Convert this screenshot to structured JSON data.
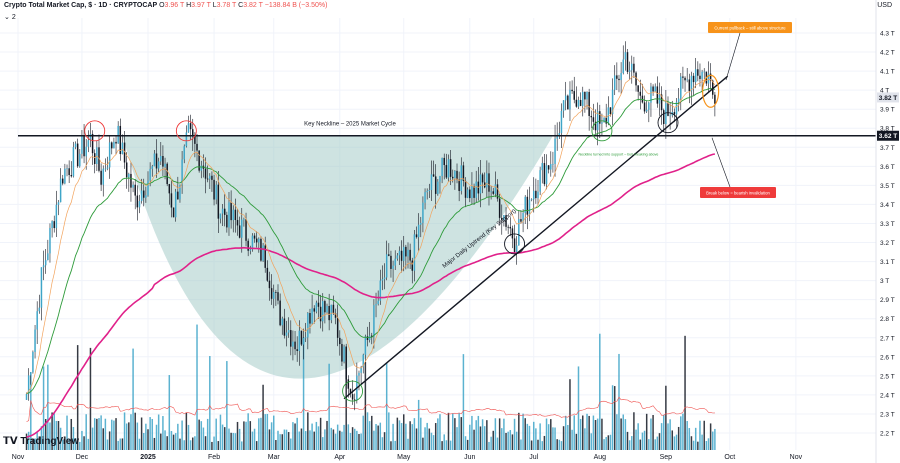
{
  "header": {
    "symbol": "Crypto Total Market Cap, $ · 1D · CRYPTOCAP",
    "o_label": "O",
    "o_value": "3.96 T",
    "h_label": "H",
    "h_value": "3.97 T",
    "l_label": "L",
    "l_value": "3.78 T",
    "c_label": "C",
    "c_value": "3.82 T",
    "change": "−138.84 B (−3.50%)",
    "indicator_count": "2"
  },
  "currency": "USD",
  "branding": "TradingView",
  "colors": {
    "up": "#26a69a",
    "down": "#131722",
    "candle_body": "#3ea5c8",
    "ema_fast": "#f2a35c",
    "ema_mid": "#2e9b3a",
    "ema_slow": "#e0218a",
    "neckline": "#131722",
    "cup_fill": "#a6ccc8",
    "callout_orange": "#f7931a",
    "callout_red": "#ef3b3b"
  },
  "chart_data": {
    "type": "candlestick",
    "title": "",
    "x_tick_labels": [
      "Nov",
      "Dec",
      "2025",
      "Feb",
      "Mar",
      "Apr",
      "May",
      "Jun",
      "Jul",
      "Aug",
      "Sep",
      "Oct",
      "Nov"
    ],
    "y_tick_labels": [
      "4.3 T",
      "4.2 T",
      "4.1 T",
      "4 T",
      "3.9 T",
      "3.8 T",
      "3.7 T",
      "3.6 T",
      "3.5 T",
      "3.4 T",
      "3.3 T",
      "3.2 T",
      "3.1 T",
      "3 T",
      "2.9 T",
      "2.8 T",
      "2.7 T",
      "2.6 T",
      "2.5 T",
      "2.4 T",
      "2.3 T",
      "2.2 T"
    ],
    "y_scale": "log",
    "ylim": [
      2.15,
      4.35
    ],
    "last_price_label": "3.82 T",
    "neckline_price_label": "3.62 T",
    "neckline_value": 3.62,
    "close_anchors": [
      {
        "date": "2024-11-05",
        "close": 2.35
      },
      {
        "date": "2024-11-12",
        "close": 2.85
      },
      {
        "date": "2024-11-22",
        "close": 3.4
      },
      {
        "date": "2024-12-05",
        "close": 3.6
      },
      {
        "date": "2024-12-10",
        "close": 3.38
      },
      {
        "date": "2024-12-17",
        "close": 3.65
      },
      {
        "date": "2024-12-26",
        "close": 3.25
      },
      {
        "date": "2025-01-07",
        "close": 3.5
      },
      {
        "date": "2025-01-13",
        "close": 3.2
      },
      {
        "date": "2025-01-20",
        "close": 3.62
      },
      {
        "date": "2025-01-27",
        "close": 3.45
      },
      {
        "date": "2025-02-04",
        "close": 3.2
      },
      {
        "date": "2025-02-14",
        "close": 3.1
      },
      {
        "date": "2025-02-25",
        "close": 2.95
      },
      {
        "date": "2025-03-03",
        "close": 2.7
      },
      {
        "date": "2025-03-12",
        "close": 2.55
      },
      {
        "date": "2025-03-20",
        "close": 2.75
      },
      {
        "date": "2025-03-30",
        "close": 2.65
      },
      {
        "date": "2025-04-07",
        "close": 2.35
      },
      {
        "date": "2025-04-15",
        "close": 2.6
      },
      {
        "date": "2025-04-23",
        "close": 2.9
      },
      {
        "date": "2025-05-05",
        "close": 2.95
      },
      {
        "date": "2025-05-12",
        "close": 3.3
      },
      {
        "date": "2025-05-22",
        "close": 3.45
      },
      {
        "date": "2025-06-02",
        "close": 3.3
      },
      {
        "date": "2025-06-10",
        "close": 3.35
      },
      {
        "date": "2025-06-22",
        "close": 3.05
      },
      {
        "date": "2025-06-30",
        "close": 3.3
      },
      {
        "date": "2025-07-10",
        "close": 3.5
      },
      {
        "date": "2025-07-14",
        "close": 3.75
      },
      {
        "date": "2025-07-22",
        "close": 3.9
      },
      {
        "date": "2025-08-02",
        "close": 3.65
      },
      {
        "date": "2025-08-13",
        "close": 4.15
      },
      {
        "date": "2025-08-20",
        "close": 3.85
      },
      {
        "date": "2025-08-27",
        "close": 3.85
      },
      {
        "date": "2025-09-01",
        "close": 3.75
      },
      {
        "date": "2025-09-10",
        "close": 3.95
      },
      {
        "date": "2025-09-15",
        "close": 4.05
      },
      {
        "date": "2025-09-21",
        "close": 4.0
      },
      {
        "date": "2025-09-24",
        "close": 3.82
      }
    ],
    "moving_averages": [
      "ema_fast",
      "ema_mid",
      "ema_slow"
    ],
    "annotations": {
      "neckline_label": "Key Neckline – 2025 Market Cycle",
      "trendline_label": "Major Daily Uptrend (Key Support)",
      "pullback_callout": "Current pullback – still above structure",
      "breakdown_callout": "Break below = bearish invalidation",
      "retest_note": "Neckline turned into support – bull breaking above"
    }
  }
}
